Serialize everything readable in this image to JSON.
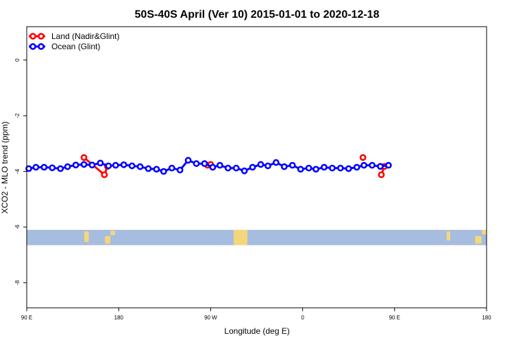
{
  "chart_data": {
    "type": "line",
    "title": "50S-40S April (Ver 10)   2015-01-01 to 2020-12-18",
    "xlabel": "Longitude (deg E)",
    "ylabel": "XCO2 - MLO trend (ppm)",
    "xlim": [
      90,
      450
    ],
    "ylim": [
      -8.9,
      1.2
    ],
    "x_ticks": [
      {
        "value": 90,
        "label": "90 E"
      },
      {
        "value": 180,
        "label": "180"
      },
      {
        "value": 270,
        "label": "90 W"
      },
      {
        "value": 360,
        "label": "0"
      },
      {
        "value": 450,
        "label": "180"
      }
    ],
    "x_ticks_extra": [
      {
        "value": 450,
        "label": "90 E",
        "at": 540
      }
    ],
    "y_ticks": [
      {
        "value": 0,
        "label": "0"
      },
      {
        "value": -2,
        "label": "-2"
      },
      {
        "value": -4,
        "label": "-4"
      },
      {
        "value": -6,
        "label": "-6"
      },
      {
        "value": -8,
        "label": "-8"
      }
    ],
    "grid": false,
    "legend_position": "top-left",
    "series": [
      {
        "name": "Land (Nadir&Glint)",
        "color": "#ff0000",
        "segments": [
          {
            "x": [
              146,
              166,
              169
            ],
            "y": [
              -3.5,
              -4.12,
              -3.82
            ]
          },
          {
            "x": [
              267,
              270
            ],
            "y": [
              -3.78,
              -3.75
            ]
          },
          {
            "x": [
              419
            ],
            "y": [
              -3.5
            ]
          },
          {
            "x": [
              437,
              440
            ],
            "y": [
              -4.12,
              -3.82
            ]
          }
        ]
      },
      {
        "name": "Ocean (Glint)",
        "color": "#0000ff",
        "x": [
          92,
          99,
          107,
          115,
          123,
          130,
          138,
          146,
          154,
          162,
          170,
          177,
          185,
          193,
          201,
          209,
          217,
          224,
          232,
          240,
          248,
          256,
          264,
          272,
          279,
          287,
          295,
          303,
          311,
          319,
          326,
          334,
          342,
          350,
          358,
          366,
          373,
          381,
          389,
          397,
          405,
          413,
          420,
          428,
          436,
          444
        ],
        "y": [
          -3.9,
          -3.85,
          -3.85,
          -3.87,
          -3.9,
          -3.83,
          -3.77,
          -3.75,
          -3.77,
          -3.7,
          -3.8,
          -3.78,
          -3.76,
          -3.8,
          -3.83,
          -3.9,
          -3.92,
          -4.0,
          -3.88,
          -3.95,
          -3.6,
          -3.72,
          -3.72,
          -3.85,
          -3.78,
          -3.88,
          -3.88,
          -3.98,
          -3.85,
          -3.75,
          -3.8,
          -3.68,
          -3.83,
          -3.78,
          -3.92,
          -3.88,
          -3.92,
          -3.85,
          -3.88,
          -3.88,
          -3.9,
          -3.85,
          -3.78,
          -3.78,
          -3.82,
          -3.78
        ]
      }
    ],
    "map_band": {
      "y_range": [
        -6.1,
        -6.65
      ],
      "ocean_color": "#a7bddf",
      "land_color": "#f4d67c"
    }
  }
}
